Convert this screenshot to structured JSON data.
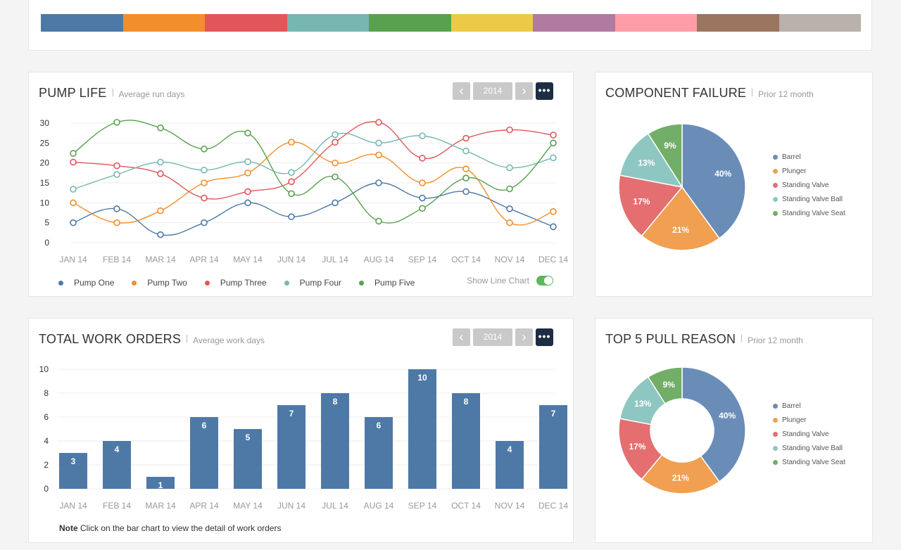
{
  "palette": [
    "#4e79a7",
    "#f28e2b",
    "#e15759",
    "#76b7b2",
    "#59a14f",
    "#edc948",
    "#b07aa1",
    "#ff9da7",
    "#9c755f",
    "#bab0ac"
  ],
  "pump_life": {
    "title": "PUMP LIFE",
    "subtitle": "Average run days",
    "year": "2014",
    "prev": "‹",
    "next": "›",
    "more": "•••",
    "toggle_label": "Show Line Chart",
    "toggle_on": true
  },
  "work_orders": {
    "title": "TOTAL WORK ORDERS",
    "subtitle": "Average work days",
    "year": "2014",
    "prev": "‹",
    "next": "›",
    "more": "•••",
    "note_bold": "Note",
    "note_text": " Click on the bar chart to view the detail of work orders"
  },
  "component_failure": {
    "title": "COMPONENT FAILURE",
    "subtitle": "Prior 12 month"
  },
  "pull_reason": {
    "title": "TOP 5 PULL REASON",
    "subtitle": "Prior 12 month"
  },
  "chart_data": [
    {
      "type": "line",
      "categories": [
        "JAN 14",
        "FEB 14",
        "MAR 14",
        "APR 14",
        "MAY 14",
        "JUN 14",
        "JUL 14",
        "AUG 14",
        "SEP 14",
        "OCT 14",
        "NOV 14",
        "DEC 14"
      ],
      "ylim": [
        0,
        30
      ],
      "yticks": [
        0,
        5,
        10,
        15,
        20,
        25,
        30
      ],
      "grid": true,
      "legend": "bottom",
      "series": [
        {
          "name": "Pump One",
          "color": "#4e79a7",
          "values": [
            5,
            8.5,
            2,
            5,
            10,
            6.5,
            10,
            15,
            11.2,
            12.8,
            8.5,
            4
          ]
        },
        {
          "name": "Pump Two",
          "color": "#f28e2b",
          "values": [
            10,
            5,
            8,
            15,
            17.5,
            25.2,
            20,
            22,
            15,
            18.5,
            5,
            7.8
          ]
        },
        {
          "name": "Pump Three",
          "color": "#e15759",
          "values": [
            20.2,
            19.3,
            17.3,
            11.2,
            12.8,
            15.3,
            25.2,
            30.2,
            21.2,
            26.2,
            28.3,
            27
          ]
        },
        {
          "name": "Pump Four",
          "color": "#76b7b2",
          "values": [
            13.4,
            17.1,
            20.2,
            18.2,
            20.3,
            17.6,
            27.1,
            25,
            26.8,
            23,
            18.8,
            21.3
          ]
        },
        {
          "name": "Pump Five",
          "color": "#59a14f",
          "values": [
            22.4,
            30.2,
            28.8,
            23.5,
            27.5,
            12.3,
            16.5,
            5.4,
            8.6,
            16.2,
            13.5,
            25
          ]
        }
      ]
    },
    {
      "type": "bar",
      "categories": [
        "JAN 14",
        "FEB 14",
        "MAR 14",
        "APR 14",
        "MAY 14",
        "JUN 14",
        "JUL 14",
        "AUG 14",
        "SEP 14",
        "OCT 14",
        "NOV 14",
        "DEC 14"
      ],
      "values": [
        3,
        4,
        1,
        6,
        5,
        7,
        8,
        6,
        10,
        8,
        4,
        7
      ],
      "ylim": [
        0,
        10
      ],
      "yticks": [
        0,
        2,
        4,
        6,
        8,
        10
      ],
      "color": "#4e79a7",
      "grid": true
    },
    {
      "type": "pie",
      "labels": [
        "Barrel",
        "Plunger",
        "Standing Valve",
        "Standing Valve Ball",
        "Standing Valve Seat"
      ],
      "values": [
        40,
        21,
        17,
        13,
        9
      ],
      "display_labels": [
        "40%",
        "21%",
        "17%",
        "13%",
        "9%"
      ],
      "colors": [
        "#6a8db8",
        "#f0a050",
        "#e46e70",
        "#8ec7c1",
        "#72ae68"
      ],
      "legend": "right"
    },
    {
      "type": "pie",
      "donut": true,
      "labels": [
        "Barrel",
        "Plunger",
        "Standing Valve",
        "Standing Valve Ball",
        "Standing Valve Seat"
      ],
      "values": [
        40,
        21,
        17,
        13,
        9
      ],
      "display_labels": [
        "40%",
        "21%",
        "17%",
        "13%",
        "9%"
      ],
      "colors": [
        "#6a8db8",
        "#f0a050",
        "#e46e70",
        "#8ec7c1",
        "#72ae68"
      ],
      "legend": "right"
    }
  ]
}
